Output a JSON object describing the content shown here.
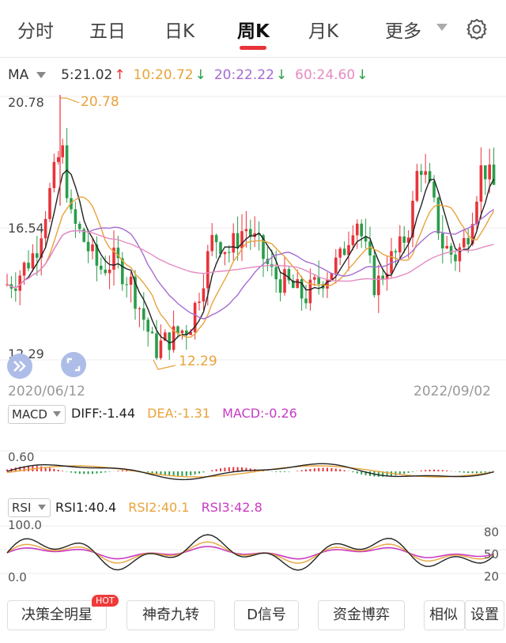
{
  "tabs": [
    {
      "label": "分时",
      "active": false
    },
    {
      "label": "五日",
      "active": false
    },
    {
      "label": "日K",
      "active": false
    },
    {
      "label": "周K",
      "active": true
    },
    {
      "label": "月K",
      "active": false
    },
    {
      "label": "更多",
      "active": false
    }
  ],
  "settings_icon": "gear-icon",
  "ma_legend": {
    "label": "MA",
    "items": [
      {
        "text": "5:21.02",
        "arrow": "↑",
        "color": "#333333",
        "arrow_color": "#e8333a"
      },
      {
        "text": "10:20.72",
        "arrow": "↓",
        "color": "#e8a33a",
        "arrow_color": "#2a9d4a"
      },
      {
        "text": "20:22.22",
        "arrow": "↓",
        "color": "#a56bd1",
        "arrow_color": "#2a9d4a"
      },
      {
        "text": "60:24.60",
        "arrow": "↓",
        "color": "#e58bc2",
        "arrow_color": "#2a9d4a"
      }
    ]
  },
  "price_axis": {
    "high": "20.78",
    "mid": "16.54",
    "low": "12.29"
  },
  "price_annotations": {
    "max": "20.78",
    "min": "12.29"
  },
  "dates": {
    "start": "2020/06/12",
    "end": "2022/09/02"
  },
  "macd": {
    "label": "MACD",
    "diff": "DIFF:-1.44",
    "dea": "DEA:-1.31",
    "macd": "MACD:-0.26",
    "axis_top": "0.60"
  },
  "rsi": {
    "label": "RSI",
    "rsi1": "RSI1:40.4",
    "rsi2": "RSI2:40.1",
    "rsi3": "RSI3:42.8",
    "axis_top": "100.0",
    "axis_bottom": "0.0",
    "right_80": "80",
    "right_50": "50",
    "right_20": "20"
  },
  "bottom_buttons": [
    {
      "label": "决策全明星",
      "badge": "HOT"
    },
    {
      "label": "神奇九转"
    },
    {
      "label": "D信号"
    },
    {
      "label": "资金博弈"
    },
    {
      "label": "相似"
    },
    {
      "label": "设置"
    }
  ],
  "colors": {
    "up": "#e8333a",
    "down": "#2a9d4a",
    "ma5": "#222222",
    "ma10": "#e8a33a",
    "ma20": "#a56bd1",
    "ma60": "#e58bc2"
  }
}
